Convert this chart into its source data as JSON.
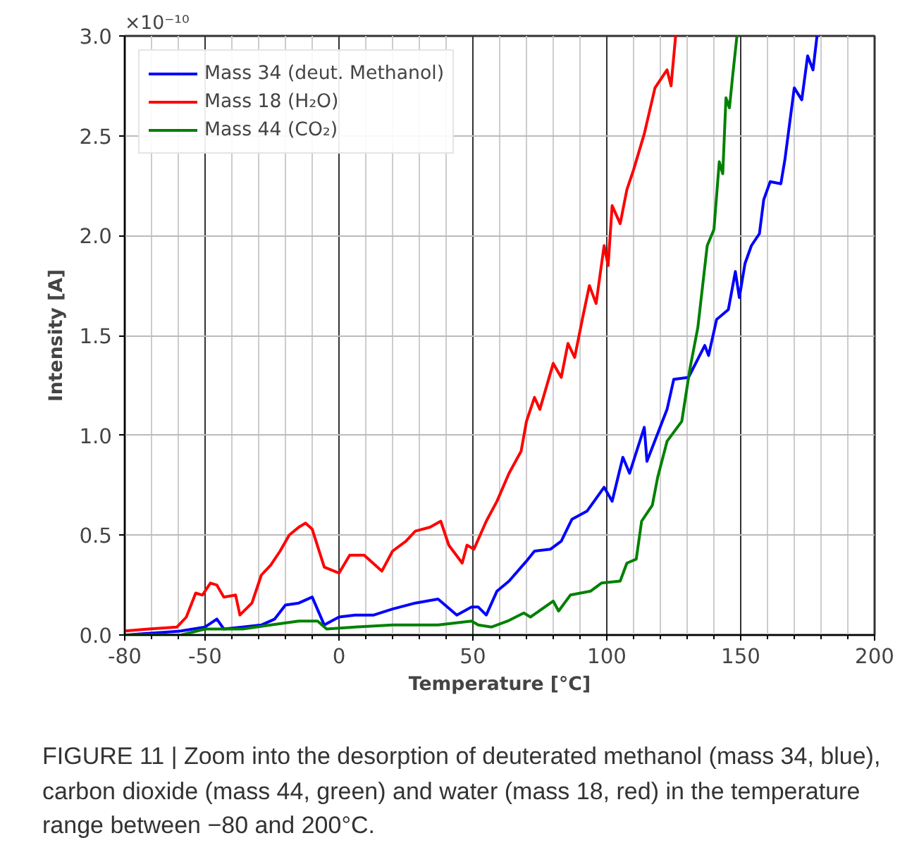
{
  "chart_data": {
    "type": "line",
    "xlabel": "Temperature [°C]",
    "ylabel": "Intensity [A]",
    "xlim": [
      -80,
      200
    ],
    "ylim": [
      0,
      3.0
    ],
    "xticks": [
      -80,
      -50,
      0,
      50,
      100,
      150,
      200
    ],
    "yticks": [
      {
        "value": 0,
        "label": "0.0"
      },
      {
        "value": 0.5,
        "label": "0.5"
      },
      {
        "value": 1.0,
        "label": "1.0"
      },
      {
        "value": 1.5,
        "label": "1.5"
      },
      {
        "value": 2.0,
        "label": "2.0"
      },
      {
        "value": 2.5,
        "label": "2.5"
      },
      {
        "value": 3.0,
        "label": "3.0"
      }
    ],
    "grid": true,
    "legend": "top left",
    "line_style": "solid",
    "annotations": [
      "×10⁻¹⁰",
      "FIGURE 11 | Zoom into the desorption of deuterated methanol (mass 34, blue), carbon dioxide (mass 44, green) and water (mass 18, red) in the temperature range between −80 and 200°C."
    ],
    "series": [
      {
        "name": "Mass 34 (deut. Methanol)",
        "color": "#0000ff",
        "x": [
          -80,
          -59,
          -50,
          -45.6,
          -43,
          -36,
          -29,
          -24,
          -20,
          -15,
          -10,
          -5.5,
          0,
          6,
          13,
          20,
          28.5,
          37,
          44,
          49.5,
          52,
          55,
          59,
          63.5,
          70,
          73,
          79,
          83,
          87,
          92.6,
          99,
          102,
          106,
          108.5,
          114,
          115,
          122.5,
          125,
          130.5,
          136.6,
          138,
          141,
          145.4,
          148,
          149.5,
          151.6,
          154,
          157,
          158.6,
          161,
          165,
          166.5,
          170,
          172.8,
          175,
          177,
          178.5
        ],
        "values": [
          0.0,
          0.02,
          0.04,
          0.08,
          0.03,
          0.04,
          0.05,
          0.08,
          0.15,
          0.16,
          0.19,
          0.05,
          0.09,
          0.1,
          0.1,
          0.13,
          0.16,
          0.18,
          0.1,
          0.14,
          0.14,
          0.1,
          0.22,
          0.27,
          0.37,
          0.42,
          0.43,
          0.47,
          0.58,
          0.62,
          0.74,
          0.67,
          0.89,
          0.81,
          1.04,
          0.87,
          1.13,
          1.28,
          1.29,
          1.45,
          1.4,
          1.58,
          1.63,
          1.82,
          1.69,
          1.86,
          1.95,
          2.01,
          2.18,
          2.27,
          2.26,
          2.38,
          2.74,
          2.68,
          2.9,
          2.83,
          3.0
        ]
      },
      {
        "name": "Mass 18 (H₂O)",
        "color": "#ff0000",
        "x": [
          -80,
          -71,
          -60.5,
          -57,
          -53.5,
          -51,
          -48,
          -45.6,
          -43,
          -38.6,
          -37,
          -32.5,
          -29,
          -25.5,
          -22,
          -18.6,
          -15,
          -12.5,
          -10,
          -5.5,
          0,
          4,
          9.4,
          16,
          20,
          25,
          28.5,
          34,
          38,
          41,
          46,
          47.8,
          50.4,
          55,
          59,
          63.5,
          68,
          70,
          73,
          75,
          80,
          83,
          85.5,
          88,
          91,
          93.5,
          96,
          99,
          100.5,
          102,
          105,
          107.5,
          110,
          114,
          118,
          122.5,
          124,
          125.7
        ],
        "values": [
          0.02,
          0.03,
          0.04,
          0.09,
          0.21,
          0.2,
          0.26,
          0.25,
          0.19,
          0.2,
          0.1,
          0.16,
          0.3,
          0.35,
          0.42,
          0.5,
          0.54,
          0.56,
          0.53,
          0.34,
          0.31,
          0.4,
          0.4,
          0.32,
          0.42,
          0.47,
          0.52,
          0.54,
          0.57,
          0.45,
          0.36,
          0.45,
          0.43,
          0.57,
          0.67,
          0.81,
          0.92,
          1.07,
          1.19,
          1.13,
          1.36,
          1.29,
          1.46,
          1.39,
          1.59,
          1.75,
          1.66,
          1.95,
          1.85,
          2.15,
          2.06,
          2.23,
          2.33,
          2.51,
          2.74,
          2.83,
          2.75,
          3.0
        ]
      },
      {
        "name": "Mass 44 (CO₂)",
        "color": "#008000",
        "x": [
          -80,
          -59,
          -50,
          -36,
          -25.5,
          -15,
          -8,
          -4.6,
          6,
          20,
          37,
          49.5,
          52,
          57,
          63,
          69,
          71.5,
          80,
          82,
          86.4,
          94,
          98,
          105,
          107.5,
          111,
          113,
          117,
          119,
          122.5,
          128,
          131,
          134,
          137.5,
          140,
          142,
          143.3,
          144.5,
          145.8,
          147,
          148.6
        ],
        "values": [
          0.0,
          0.0,
          0.03,
          0.03,
          0.05,
          0.07,
          0.07,
          0.03,
          0.04,
          0.05,
          0.05,
          0.07,
          0.05,
          0.04,
          0.07,
          0.11,
          0.09,
          0.17,
          0.12,
          0.2,
          0.22,
          0.26,
          0.27,
          0.36,
          0.38,
          0.57,
          0.65,
          0.79,
          0.97,
          1.07,
          1.33,
          1.54,
          1.95,
          2.03,
          2.37,
          2.31,
          2.69,
          2.64,
          2.8,
          3.0
        ]
      }
    ]
  }
}
